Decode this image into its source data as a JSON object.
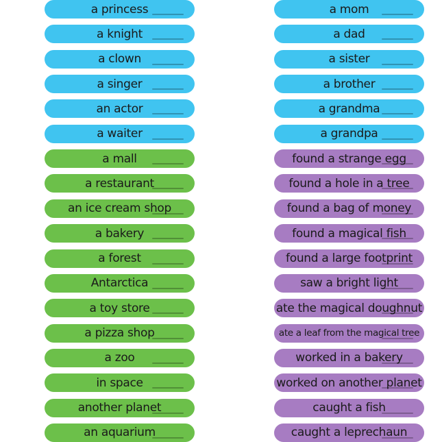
{
  "left_sticks": [
    {
      "label": "a princess",
      "color": "#40c4f0"
    },
    {
      "label": "a knight",
      "color": "#40c4f0"
    },
    {
      "label": "a clown",
      "color": "#40c4f0"
    },
    {
      "label": "a singer",
      "color": "#40c4f0"
    },
    {
      "label": "an actor",
      "color": "#40c4f0"
    },
    {
      "label": "a waiter",
      "color": "#40c4f0"
    },
    {
      "label": "a mall",
      "color": "#6cc04a"
    },
    {
      "label": "a restaurant",
      "color": "#6cc04a"
    },
    {
      "label": "an ice cream shop",
      "color": "#6cc04a"
    },
    {
      "label": "a bakery",
      "color": "#6cc04a"
    },
    {
      "label": "a forest",
      "color": "#6cc04a"
    },
    {
      "label": "Antarctica",
      "color": "#6cc04a"
    },
    {
      "label": "a toy store",
      "color": "#6cc04a"
    },
    {
      "label": "a pizza shop",
      "color": "#6cc04a"
    },
    {
      "label": "a zoo",
      "color": "#6cc04a"
    },
    {
      "label": "in space",
      "color": "#6cc04a"
    },
    {
      "label": "another planet",
      "color": "#6cc04a"
    },
    {
      "label": "an aquarium",
      "color": "#6cc04a"
    }
  ],
  "right_sticks": [
    {
      "label": "a mom",
      "color": "#40c4f0"
    },
    {
      "label": "a dad",
      "color": "#40c4f0"
    },
    {
      "label": "a sister",
      "color": "#40c4f0"
    },
    {
      "label": "a brother",
      "color": "#40c4f0"
    },
    {
      "label": "a grandma",
      "color": "#40c4f0"
    },
    {
      "label": "a grandpa",
      "color": "#40c4f0"
    },
    {
      "label": "found a strange egg",
      "color": "#a77cc2"
    },
    {
      "label": "found a hole in a tree",
      "color": "#a77cc2"
    },
    {
      "label": "found a bag of money",
      "color": "#a77cc2"
    },
    {
      "label": "found a magical fish",
      "color": "#a77cc2"
    },
    {
      "label": "found a large footprint",
      "color": "#a77cc2"
    },
    {
      "label": "saw a bright light",
      "color": "#a77cc2"
    },
    {
      "label": "ate the magical doughnut",
      "color": "#a77cc2"
    },
    {
      "label": "ate a leaf from the magical tree",
      "color": "#a77cc2"
    },
    {
      "label": "worked in a bakery",
      "color": "#a77cc2"
    },
    {
      "label": "worked on another planet",
      "color": "#a77cc2"
    },
    {
      "label": "caught a fish",
      "color": "#a77cc2"
    },
    {
      "label": "caught a leprechaun",
      "color": "#a77cc2"
    }
  ]
}
